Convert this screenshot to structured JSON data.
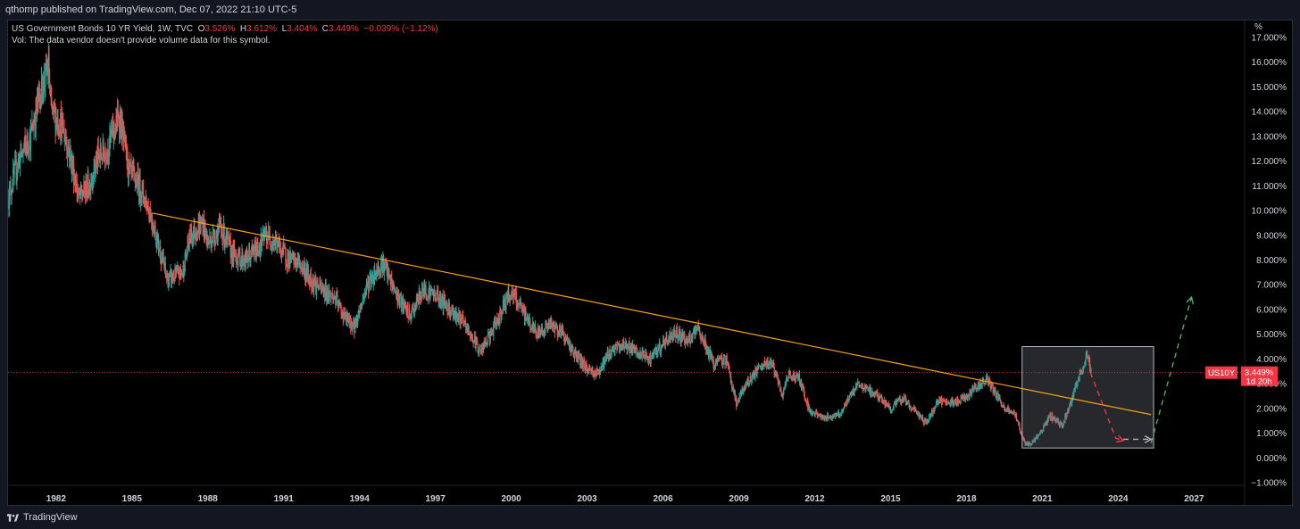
{
  "header": {
    "published_line": "qthomp published on TradingView.com, Dec 07, 2022 21:10 UTC-5"
  },
  "legend": {
    "symbol_line_prefix": "US Government Bonds 10 YR Yield, 1W, TVC",
    "o_label": "O",
    "o_value": "3.526%",
    "h_label": "H",
    "h_value": "3.612%",
    "l_label": "L",
    "l_value": "3.404%",
    "c_label": "C",
    "c_value": "3.449%",
    "change": "−0.039% (−1.12%)",
    "vol_note": "Vol: The data vendor doesn't provide volume data for this symbol."
  },
  "price_tag": {
    "symbol": "US10Y",
    "price": "3.449%",
    "countdown": "1d 20h"
  },
  "footer": {
    "brand": "TradingView"
  },
  "colors": {
    "up": "#26a69a",
    "down": "#ef5350",
    "trendline": "#f7a21b",
    "accent_red": "#f23645",
    "projection_down": "#f23645",
    "projection_up": "#4caf50",
    "background": "#000000"
  },
  "chart_data": {
    "type": "line",
    "title": "US Government Bonds 10 YR Yield, 1W, TVC",
    "y_unit_label": "%",
    "ylim": [
      -1.0,
      17.0
    ],
    "y_ticks": [
      "−1.000%",
      "0.000%",
      "1.000%",
      "2.000%",
      "3.000%",
      "4.000%",
      "5.000%",
      "6.000%",
      "7.000%",
      "8.000%",
      "9.000%",
      "10.000%",
      "11.000%",
      "12.000%",
      "13.000%",
      "14.000%",
      "15.000%",
      "16.000%",
      "17.000%"
    ],
    "x_ticks": [
      "1982",
      "1985",
      "1988",
      "1991",
      "1994",
      "1997",
      "2000",
      "2003",
      "2006",
      "2009",
      "2012",
      "2015",
      "2018",
      "2021",
      "2024",
      "2027"
    ],
    "xlim": [
      1980.1,
      2029.0
    ],
    "series": [
      {
        "x": [
          1980.1,
          1980.5,
          1981.0,
          1981.3,
          1981.7,
          1981.8,
          1982.2,
          1982.5,
          1982.9,
          1983.3,
          1983.6,
          1984.0,
          1984.5,
          1984.9,
          1985.3,
          1985.7,
          1986.2,
          1986.4,
          1987.0,
          1987.3,
          1987.8,
          1988.0,
          1988.5,
          1989.0,
          1989.5,
          1990.0,
          1990.3,
          1990.7,
          1991.2,
          1991.6,
          1992.0,
          1992.5,
          1993.0,
          1993.4,
          1993.8,
          1994.3,
          1994.9,
          1995.5,
          1996.0,
          1996.5,
          1997.0,
          1997.4,
          1998.0,
          1998.8,
          1999.3,
          1999.8,
          2000.0,
          2000.4,
          2001.0,
          2001.5,
          2002.0,
          2002.5,
          2003.0,
          2003.4,
          2003.9,
          2004.5,
          2005.0,
          2005.5,
          2006.0,
          2006.5,
          2007.0,
          2007.4,
          2008.0,
          2008.5,
          2008.9,
          2009.3,
          2009.8,
          2010.3,
          2010.7,
          2011.0,
          2011.4,
          2011.8,
          2012.4,
          2013.0,
          2013.7,
          2014.5,
          2015.0,
          2015.5,
          2016.4,
          2016.9,
          2017.5,
          2018.0,
          2018.8,
          2019.5,
          2019.9,
          2020.3,
          2020.6,
          2021.0,
          2021.3,
          2021.8,
          2022.0,
          2022.4,
          2022.8,
          2022.93
        ],
        "y": [
          10.5,
          12.0,
          13.0,
          14.5,
          15.8,
          14.0,
          13.5,
          12.5,
          10.5,
          11.0,
          12.0,
          12.5,
          13.8,
          11.5,
          11.0,
          10.0,
          8.0,
          7.2,
          7.5,
          9.0,
          9.5,
          8.7,
          9.3,
          8.2,
          8.0,
          8.5,
          9.0,
          8.7,
          8.0,
          7.9,
          7.3,
          6.8,
          6.5,
          5.7,
          5.3,
          7.0,
          7.9,
          6.5,
          5.7,
          6.8,
          6.6,
          6.2,
          5.6,
          4.3,
          5.2,
          6.4,
          6.7,
          6.0,
          5.0,
          5.4,
          5.1,
          4.2,
          3.6,
          3.4,
          4.3,
          4.6,
          4.2,
          4.0,
          4.6,
          5.1,
          4.7,
          5.2,
          3.8,
          4.0,
          2.2,
          3.0,
          3.6,
          3.9,
          2.5,
          3.4,
          3.2,
          1.9,
          1.6,
          1.8,
          3.0,
          2.5,
          2.0,
          2.4,
          1.4,
          2.3,
          2.2,
          2.5,
          3.2,
          2.0,
          1.8,
          0.6,
          0.6,
          1.1,
          1.7,
          1.3,
          1.9,
          3.1,
          4.2,
          3.45
        ]
      }
    ],
    "annotations": {
      "trendline": {
        "x": [
          1985.8,
          2025.3
        ],
        "y": [
          9.9,
          1.75
        ]
      },
      "last_price_line": 3.449,
      "box": {
        "x": [
          2020.2,
          2025.4
        ],
        "y": [
          0.4,
          4.5
        ]
      },
      "projection_down": {
        "x": [
          2022.9,
          2023.9,
          2024.2
        ],
        "y": [
          3.45,
          0.8,
          0.7
        ]
      },
      "projection_flat": {
        "x": [
          2024.2,
          2025.3
        ],
        "y": [
          0.75,
          0.75
        ]
      },
      "projection_up": {
        "x": [
          2025.3,
          2026.9
        ],
        "y": [
          0.6,
          6.5
        ]
      }
    },
    "grid": false,
    "legend": "top-left"
  }
}
